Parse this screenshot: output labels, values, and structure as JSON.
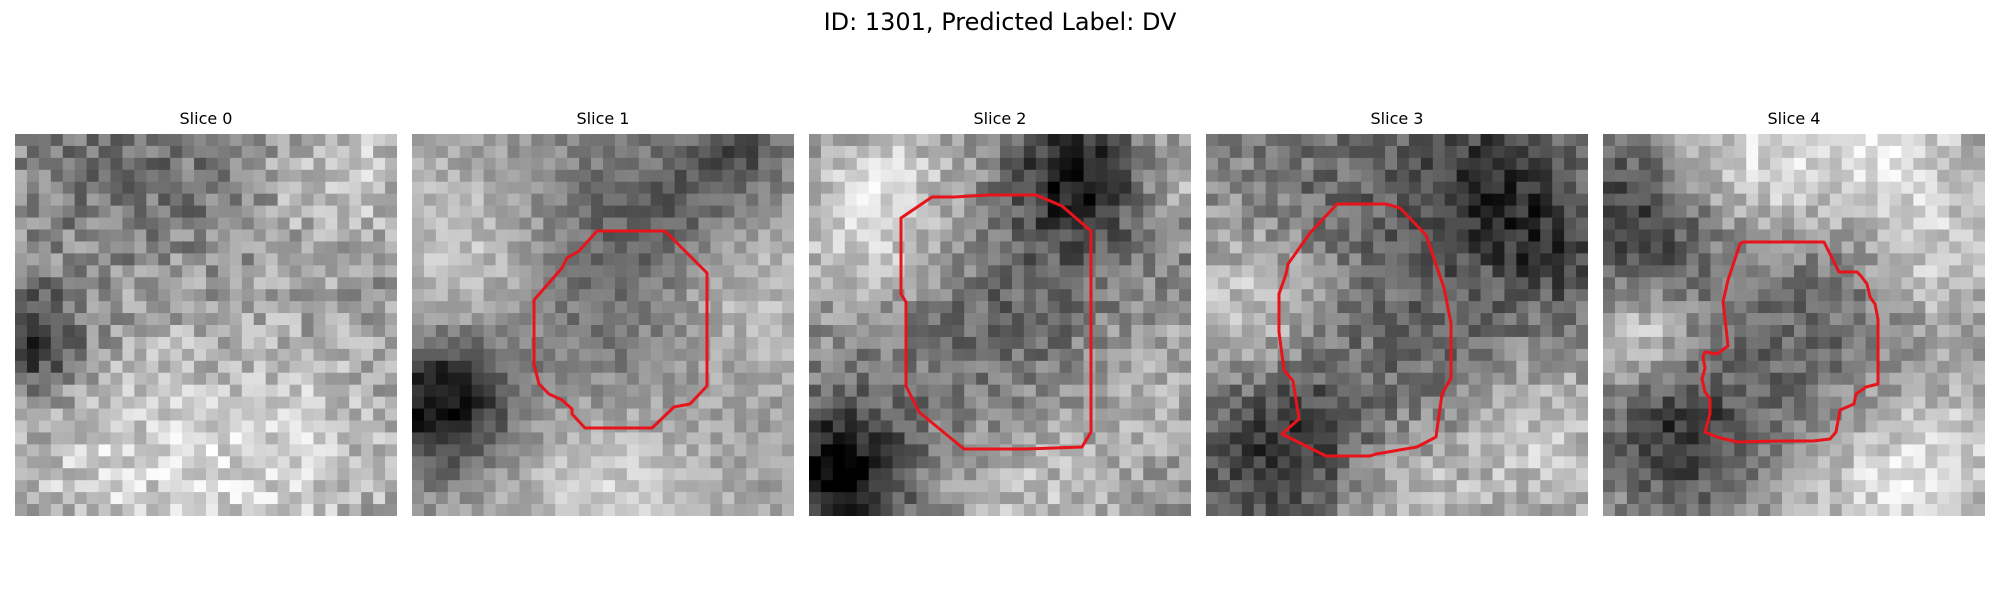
{
  "figure": {
    "title": "ID: 1301, Predicted Label: DV"
  },
  "panels": [
    {
      "title": "Slice 0",
      "has_contour": false
    },
    {
      "title": "Slice 1",
      "has_contour": true
    },
    {
      "title": "Slice 2",
      "has_contour": true
    },
    {
      "title": "Slice 3",
      "has_contour": true
    },
    {
      "title": "Slice 4",
      "has_contour": true
    }
  ],
  "colors": {
    "contour": "#e8141c",
    "background": "#ffffff"
  }
}
